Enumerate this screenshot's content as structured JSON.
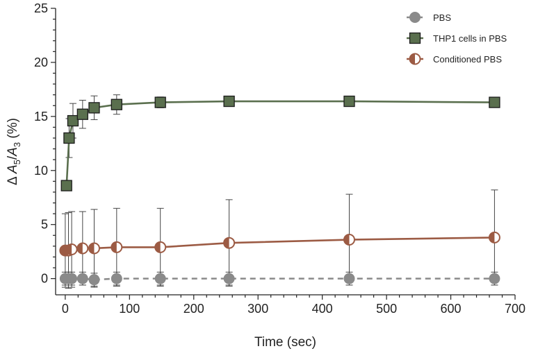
{
  "chart_data": {
    "type": "line",
    "title": "",
    "xlabel": "Time (sec)",
    "ylabel": {
      "prefix": "Δ ",
      "a": "A",
      "sub5": "5",
      "slash": "/",
      "b": "A",
      "sub3": "3",
      "suffix": " (%)"
    },
    "xlim": [
      -15,
      700
    ],
    "ylim": [
      -1.5,
      25
    ],
    "xticks": [
      0,
      100,
      200,
      300,
      400,
      500,
      600,
      700
    ],
    "yticks": [
      0,
      5,
      10,
      15,
      20,
      25
    ],
    "x_minor_step": 20,
    "y_minor_step": 1,
    "legend_position": "top-right",
    "series": [
      {
        "name": "PBS",
        "color": "#8a8a8a",
        "marker": "circle-filled",
        "line": "dashed",
        "x": [
          0,
          5,
          10,
          27,
          45,
          80,
          148,
          255,
          442,
          668
        ],
        "y": [
          0,
          0,
          0,
          0,
          -0.1,
          0,
          0,
          0,
          0,
          0
        ],
        "err": [
          0.6,
          0.6,
          0.6,
          0.6,
          0.6,
          0.6,
          0.6,
          0.6,
          0.6,
          0.6
        ]
      },
      {
        "name": "THP1 cells in PBS",
        "color": "#5a6f4e",
        "marker": "square",
        "line": "solid",
        "x": [
          2,
          6,
          12,
          27,
          45,
          80,
          148,
          255,
          442,
          668
        ],
        "y": [
          8.6,
          13.0,
          14.6,
          15.2,
          15.8,
          16.1,
          16.3,
          16.4,
          16.4,
          16.3
        ],
        "err": [
          0,
          1.8,
          1.6,
          1.3,
          1.1,
          0.9,
          0.5,
          0.2,
          0.2,
          0.2
        ]
      },
      {
        "name": "Conditioned PBS",
        "color": "#9c5b44",
        "marker": "circle-half",
        "line": "solid",
        "x": [
          0,
          5,
          10,
          27,
          45,
          80,
          148,
          255,
          442,
          668
        ],
        "y": [
          2.6,
          2.6,
          2.7,
          2.8,
          2.8,
          2.9,
          2.9,
          3.3,
          3.6,
          3.8
        ],
        "err": [
          3.4,
          3.5,
          3.5,
          3.4,
          3.6,
          3.6,
          3.6,
          4.0,
          4.2,
          4.4
        ]
      }
    ]
  }
}
